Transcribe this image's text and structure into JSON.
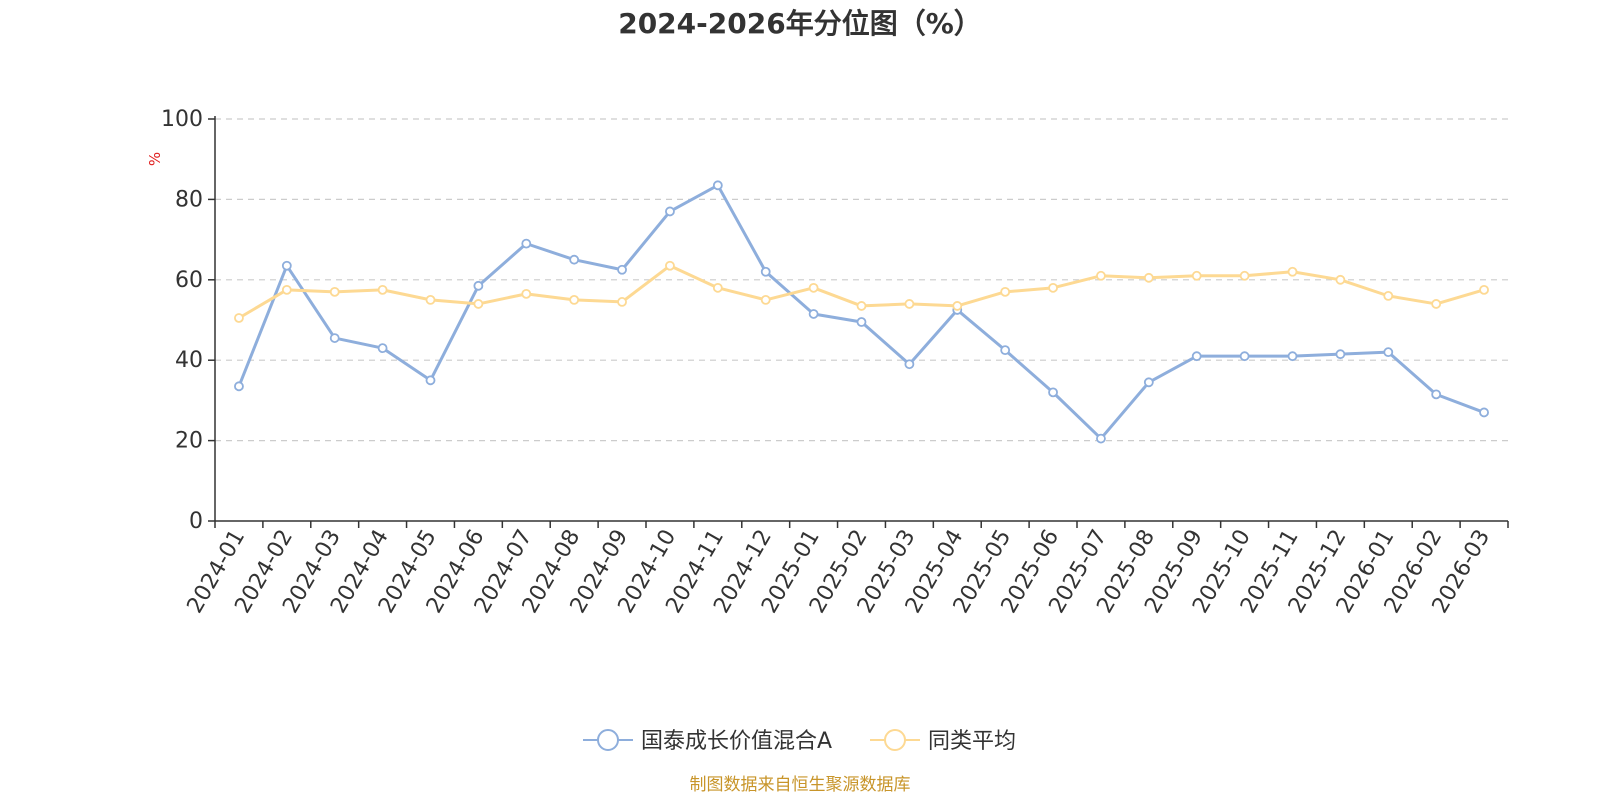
{
  "chart_data": {
    "type": "line",
    "title": "2024-2026年分位图（%）",
    "ylabel": "%",
    "xlabel": "",
    "ylim": [
      0,
      100
    ],
    "yticks": [
      0,
      20,
      40,
      60,
      80,
      100
    ],
    "grid": true,
    "legend_position": "bottom",
    "categories": [
      "2024-01",
      "2024-02",
      "2024-03",
      "2024-04",
      "2024-05",
      "2024-06",
      "2024-07",
      "2024-08",
      "2024-09",
      "2024-10",
      "2024-11",
      "2024-12",
      "2025-01",
      "2025-02",
      "2025-03",
      "2025-04",
      "2025-05",
      "2025-06",
      "2025-07",
      "2025-08",
      "2025-09",
      "2025-10",
      "2025-11",
      "2025-12",
      "2026-01",
      "2026-02",
      "2026-03"
    ],
    "series": [
      {
        "name": "国泰成长价值混合A",
        "color": "#8eaedc",
        "values": [
          33.5,
          63.5,
          45.5,
          43,
          35,
          58.5,
          69,
          65,
          62.5,
          77,
          83.5,
          62,
          51.5,
          49.5,
          39,
          52.5,
          42.5,
          32,
          20.5,
          34.5,
          41,
          41,
          41,
          41.5,
          42,
          31.5,
          27
        ]
      },
      {
        "name": "同类平均",
        "color": "#fdd993",
        "values": [
          50.5,
          57.5,
          57,
          57.5,
          55,
          54,
          56.5,
          55,
          54.5,
          63.5,
          58,
          55,
          58,
          53.5,
          54,
          53.5,
          57,
          58,
          61,
          60.5,
          61,
          61,
          62,
          60,
          56,
          54,
          57.5
        ]
      }
    ]
  },
  "source": "制图数据来自恒生聚源数据库",
  "colors": {
    "source_text": "#c8952a",
    "ylabel": "#e02020",
    "axis": "#333333",
    "grid": "#cccccc"
  }
}
